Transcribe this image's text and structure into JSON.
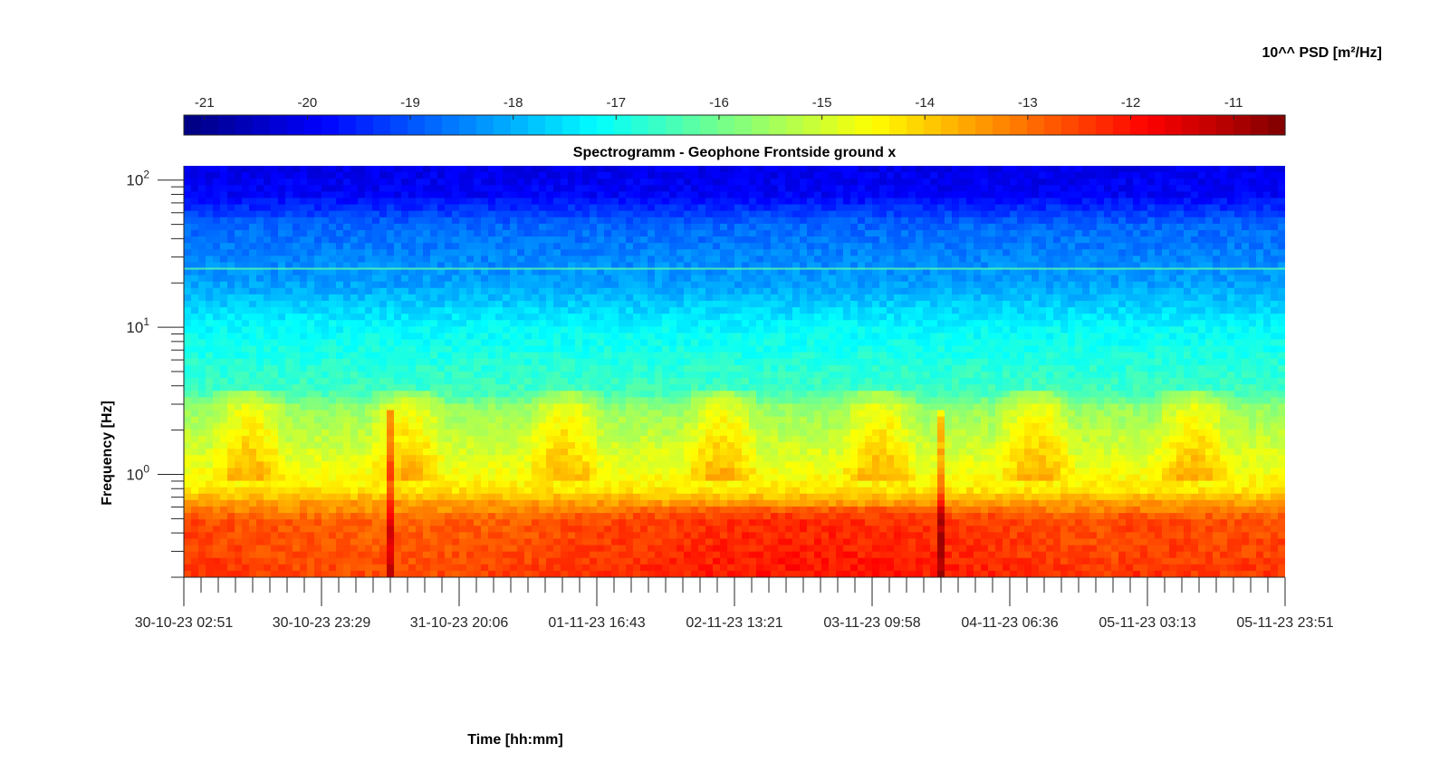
{
  "chart_data": {
    "type": "heatmap",
    "title": "Spectrogramm - Geophone Frontside ground x",
    "xlabel": "Time [hh:mm]",
    "ylabel": "Frequency [Hz]",
    "colorbar_label": "10^^ PSD [m²/Hz]",
    "colormap": "jet",
    "x_tick_labels": [
      "30-10-23 02:51",
      "30-10-23 23:29",
      "31-10-23 20:06",
      "01-11-23 16:43",
      "02-11-23 13:21",
      "03-11-23 09:58",
      "04-11-23 06:36",
      "05-11-23 03:13",
      "05-11-23 23:51"
    ],
    "y_scale": "log",
    "y_tick_labels": [
      {
        "base": "10",
        "exp": "2"
      },
      {
        "base": "10",
        "exp": "1"
      },
      {
        "base": "10",
        "exp": "0"
      }
    ],
    "ylim": [
      0.2,
      125
    ],
    "colorbar_ticks": [
      -21,
      -20,
      -19,
      -18,
      -17,
      -16,
      -15,
      -14,
      -13,
      -12,
      -11
    ],
    "clim": [
      -21.2,
      -10.5
    ],
    "description_bands": [
      {
        "freq_range_hz": [
          0.2,
          0.6
        ],
        "log10_psd": -12.6
      },
      {
        "freq_range_hz": [
          0.7,
          1.1
        ],
        "log10_psd": -14.2
      },
      {
        "freq_range_hz": [
          1.1,
          3.5
        ],
        "log10_psd": -15.3
      },
      {
        "freq_range_hz": [
          3.5,
          15
        ],
        "log10_psd": -17.0
      },
      {
        "freq_range_hz": [
          15,
          60
        ],
        "log10_psd": -18.5
      },
      {
        "freq_range_hz": [
          60,
          125
        ],
        "log10_psd": -19.8
      }
    ],
    "line_at_hz": 25,
    "transient_events": [
      "31-10-23 ~06:00",
      "03-11-23 ~18:00"
    ]
  }
}
